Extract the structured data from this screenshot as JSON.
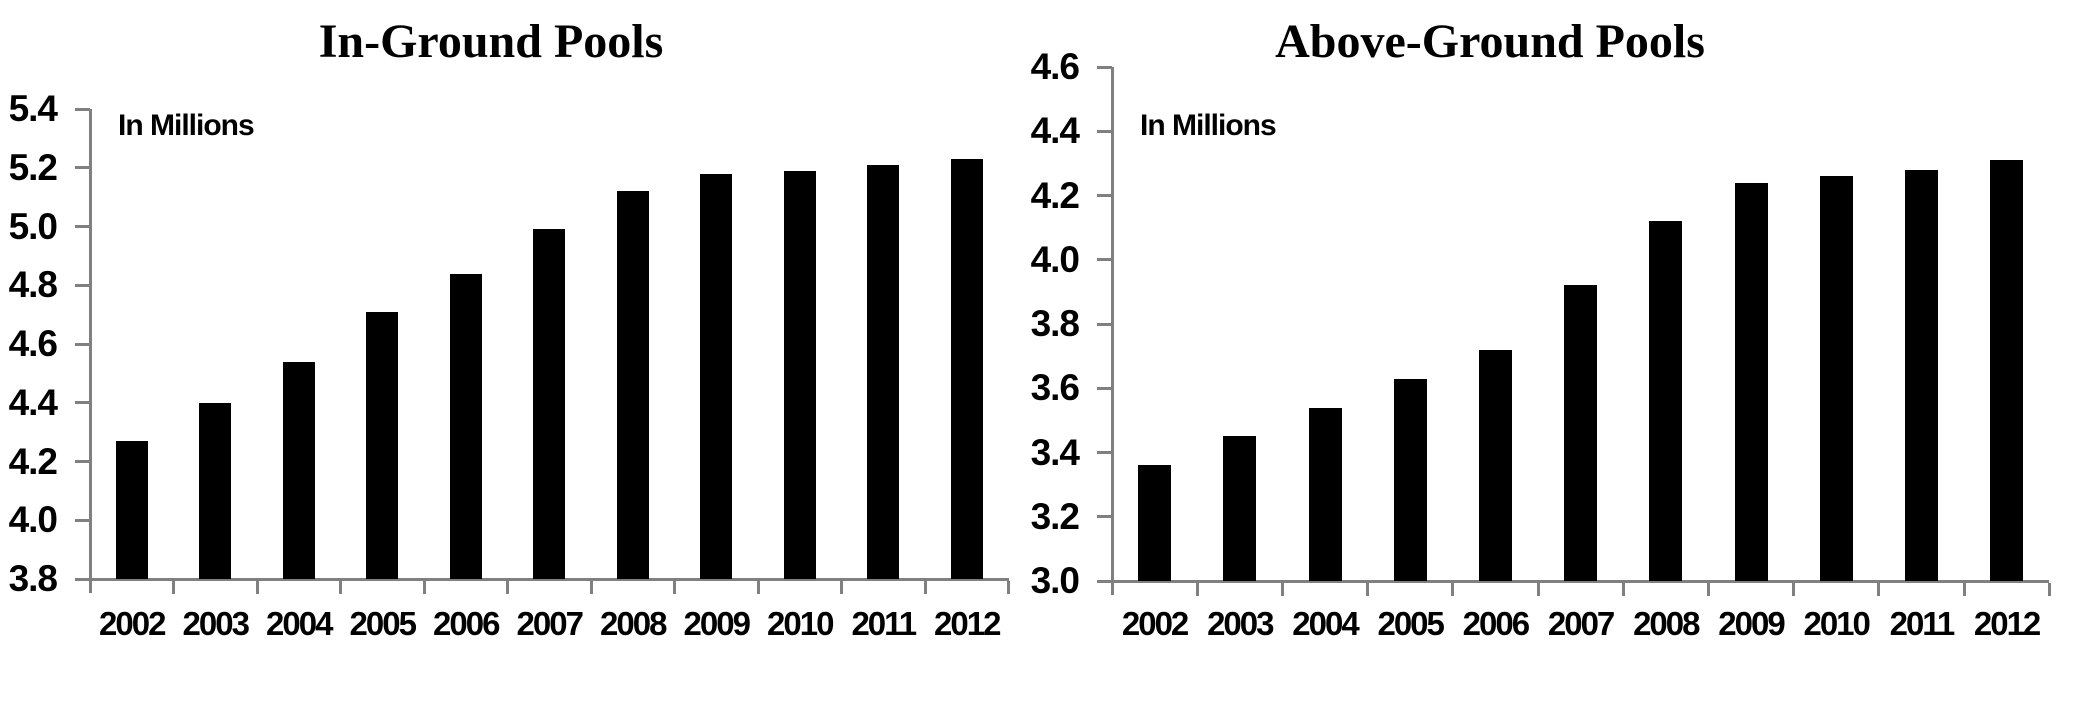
{
  "figure": {
    "background_color": "#ffffff",
    "bar_color": "#000000",
    "axis_color": "#808080",
    "text_color": "#000000"
  },
  "chart_data": [
    {
      "type": "bar",
      "title": "In-Ground Pools",
      "units_note": "In Millions",
      "categories": [
        "2002",
        "2003",
        "2004",
        "2005",
        "2006",
        "2007",
        "2008",
        "2009",
        "2010",
        "2011",
        "2012"
      ],
      "values": [
        4.27,
        4.4,
        4.54,
        4.71,
        4.84,
        4.99,
        5.12,
        5.18,
        5.19,
        5.21,
        5.23
      ],
      "ylim": [
        3.8,
        5.4
      ],
      "ytick_step": 0.2,
      "ytick_labels": [
        "5.4",
        "5.2",
        "5.0",
        "4.8",
        "4.6",
        "4.4",
        "4.2",
        "4.0",
        "3.8"
      ],
      "xlabel": "",
      "ylabel": "In Millions",
      "grid": "off",
      "legend": "none",
      "bar_color": "#000000"
    },
    {
      "type": "bar",
      "title": "Above-Ground Pools",
      "units_note": "In Millions",
      "categories": [
        "2002",
        "2003",
        "2004",
        "2005",
        "2006",
        "2007",
        "2008",
        "2009",
        "2010",
        "2011",
        "2012"
      ],
      "values": [
        3.36,
        3.45,
        3.54,
        3.63,
        3.72,
        3.92,
        4.12,
        4.24,
        4.26,
        4.28,
        4.31
      ],
      "ylim": [
        3.0,
        4.6
      ],
      "ytick_step": 0.2,
      "ytick_labels": [
        "4.6",
        "4.4",
        "4.2",
        "4.0",
        "3.8",
        "3.6",
        "3.4",
        "3.2",
        "3.0"
      ],
      "xlabel": "",
      "ylabel": "In Millions",
      "grid": "off",
      "legend": "none",
      "bar_color": "#000000"
    }
  ]
}
